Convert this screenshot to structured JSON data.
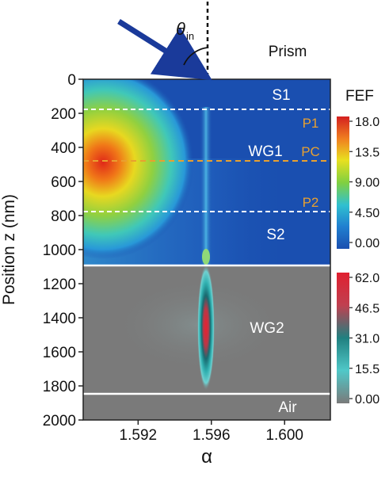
{
  "chart_data": {
    "type": "heatmap",
    "xlabel": "α",
    "ylabel": "Position z (nm)",
    "xlim": [
      1.589,
      1.6025
    ],
    "ylim": [
      2000,
      0
    ],
    "x_ticks": [
      1.592,
      1.596,
      1.6
    ],
    "x_tick_labels": [
      "1.592",
      "1.596",
      "1.600"
    ],
    "y_ticks": [
      0,
      200,
      400,
      600,
      800,
      1000,
      1200,
      1400,
      1600,
      1800,
      2000
    ],
    "y_tick_labels": [
      "0",
      "200",
      "400",
      "600",
      "800",
      "1000",
      "1200",
      "1400",
      "1600",
      "1800",
      "2000"
    ],
    "angle_label": "θ",
    "angle_label_sub": "in",
    "medium_label": "Prism",
    "layers": [
      {
        "name": "S1",
        "z_top": 0,
        "z_bottom": 190
      },
      {
        "name": "WG1",
        "z_top": 190,
        "z_bottom": 790
      },
      {
        "name": "S2",
        "z_top": 790,
        "z_bottom": 1100
      },
      {
        "name": "WG2",
        "z_top": 1100,
        "z_bottom": 1850
      },
      {
        "name": "Air",
        "z_top": 1850,
        "z_bottom": 2000
      }
    ],
    "boundaries": [
      {
        "z": 190,
        "style": "dashed-white"
      },
      {
        "z": 500,
        "style": "dashed-orange",
        "label": "PC"
      },
      {
        "z": 790,
        "style": "dashed-white"
      },
      {
        "z": 1100,
        "style": "solid-white"
      },
      {
        "z": 1850,
        "style": "solid-white"
      }
    ],
    "annotations": [
      "P1",
      "P2"
    ],
    "hotspots": [
      {
        "region": "WG1",
        "alpha": 1.5905,
        "z": 490,
        "fef": 18.0
      },
      {
        "region": "WG2",
        "alpha": 1.596,
        "z": 1400,
        "fef": 62.0
      }
    ],
    "colorbars": [
      {
        "title": "FEF",
        "ticks": [
          "18.0",
          "13.5",
          "9.00",
          "4.50",
          "0.00"
        ],
        "colors": [
          "#d42020",
          "#f08020",
          "#e8e020",
          "#80d040",
          "#30c0d0",
          "#2080d0",
          "#1a4fb0"
        ]
      },
      {
        "ticks": [
          "62.0",
          "46.5",
          "31.0",
          "15.5",
          "0.00"
        ],
        "colors": [
          "#e02030",
          "#c04050",
          "#208080",
          "#50c8c8",
          "#7a7a7a"
        ]
      }
    ],
    "grid": false
  }
}
